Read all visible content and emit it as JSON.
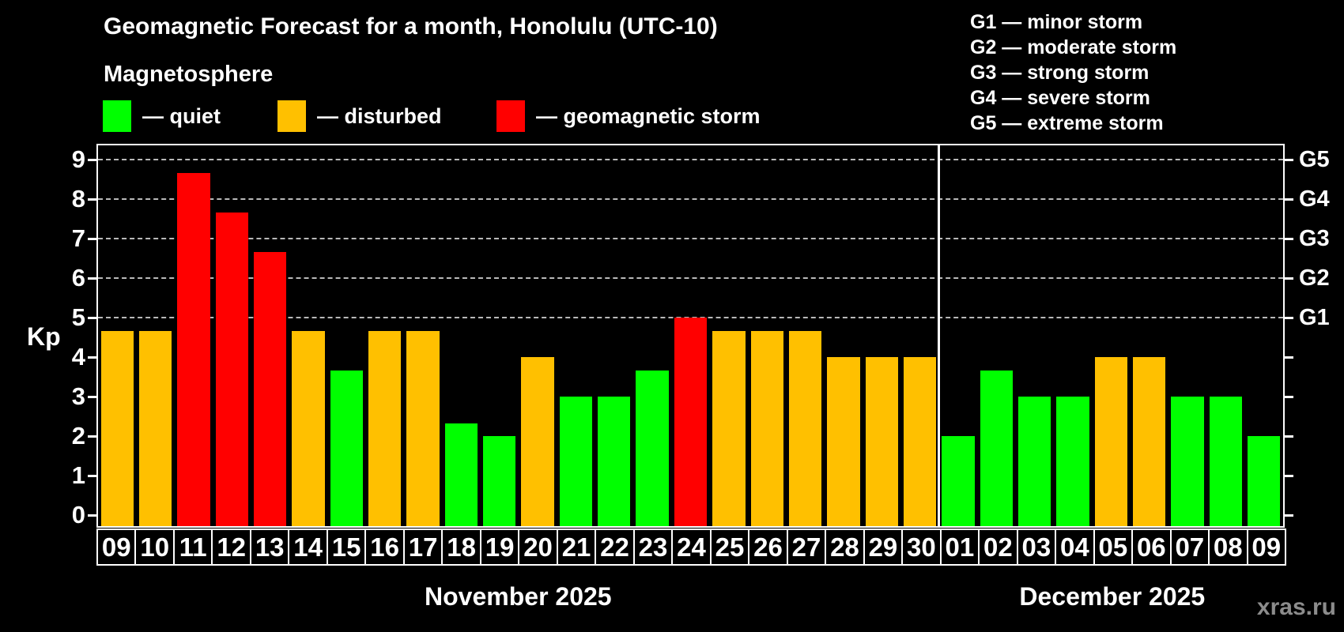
{
  "header": {
    "title": "Geomagnetic Forecast for a month, Honolulu (UTC-10)",
    "subtitle": "Magnetosphere"
  },
  "legend": [
    {
      "id": "quiet",
      "label": "— quiet",
      "color": "#00ff00"
    },
    {
      "id": "disturbed",
      "label": "— disturbed",
      "color": "#ffc000"
    },
    {
      "id": "storm",
      "label": "— geomagnetic storm",
      "color": "#ff0000"
    }
  ],
  "g_scale_legend": [
    "G1 — minor storm",
    "G2 — moderate storm",
    "G3 — strong storm",
    "G4 — severe storm",
    "G5 — extreme storm"
  ],
  "watermark": "xras.ru",
  "colors": {
    "background": "#000000",
    "quiet": "#00ff00",
    "disturbed": "#ffc000",
    "storm": "#ff0000",
    "axis": "#ffffff",
    "grid": "#b9b9b9",
    "watermark": "#8c8c8c"
  },
  "chart_data": {
    "type": "bar",
    "title": "Geomagnetic Forecast for a month, Honolulu (UTC-10)",
    "ylabel": "Kp",
    "xlabel": "",
    "ylim": [
      0,
      9.35
    ],
    "grid": "dashed horizontal lines at Kp 5-9 (G1-G5)",
    "legend_position": "top-left statuses, top-right G scale",
    "y_ticks": [
      0,
      1,
      2,
      3,
      4,
      5,
      6,
      7,
      8,
      9
    ],
    "g_levels": [
      {
        "kp": 5,
        "label": "G1"
      },
      {
        "kp": 6,
        "label": "G2"
      },
      {
        "kp": 7,
        "label": "G3"
      },
      {
        "kp": 8,
        "label": "G4"
      },
      {
        "kp": 9,
        "label": "G5"
      }
    ],
    "months": [
      {
        "label": "November 2025",
        "days": [
          {
            "date": "09",
            "kp": 4.67,
            "level": "disturbed"
          },
          {
            "date": "10",
            "kp": 4.67,
            "level": "disturbed"
          },
          {
            "date": "11",
            "kp": 8.67,
            "level": "storm"
          },
          {
            "date": "12",
            "kp": 7.67,
            "level": "storm"
          },
          {
            "date": "13",
            "kp": 6.67,
            "level": "storm"
          },
          {
            "date": "14",
            "kp": 4.67,
            "level": "disturbed"
          },
          {
            "date": "15",
            "kp": 3.67,
            "level": "quiet"
          },
          {
            "date": "16",
            "kp": 4.67,
            "level": "disturbed"
          },
          {
            "date": "17",
            "kp": 4.67,
            "level": "disturbed"
          },
          {
            "date": "18",
            "kp": 2.33,
            "level": "quiet"
          },
          {
            "date": "19",
            "kp": 2.0,
            "level": "quiet"
          },
          {
            "date": "20",
            "kp": 4.0,
            "level": "disturbed"
          },
          {
            "date": "21",
            "kp": 3.0,
            "level": "quiet"
          },
          {
            "date": "22",
            "kp": 3.0,
            "level": "quiet"
          },
          {
            "date": "23",
            "kp": 3.67,
            "level": "quiet"
          },
          {
            "date": "24",
            "kp": 5.0,
            "level": "storm"
          },
          {
            "date": "25",
            "kp": 4.67,
            "level": "disturbed"
          },
          {
            "date": "26",
            "kp": 4.67,
            "level": "disturbed"
          },
          {
            "date": "27",
            "kp": 4.67,
            "level": "disturbed"
          },
          {
            "date": "28",
            "kp": 4.0,
            "level": "disturbed"
          },
          {
            "date": "29",
            "kp": 4.0,
            "level": "disturbed"
          },
          {
            "date": "30",
            "kp": 4.0,
            "level": "disturbed"
          }
        ]
      },
      {
        "label": "December 2025",
        "days": [
          {
            "date": "01",
            "kp": 2.0,
            "level": "quiet"
          },
          {
            "date": "02",
            "kp": 3.67,
            "level": "quiet"
          },
          {
            "date": "03",
            "kp": 3.0,
            "level": "quiet"
          },
          {
            "date": "04",
            "kp": 3.0,
            "level": "quiet"
          },
          {
            "date": "05",
            "kp": 4.0,
            "level": "disturbed"
          },
          {
            "date": "06",
            "kp": 4.0,
            "level": "disturbed"
          },
          {
            "date": "07",
            "kp": 3.0,
            "level": "quiet"
          },
          {
            "date": "08",
            "kp": 3.0,
            "level": "quiet"
          },
          {
            "date": "09",
            "kp": 2.0,
            "level": "quiet"
          }
        ]
      }
    ]
  }
}
